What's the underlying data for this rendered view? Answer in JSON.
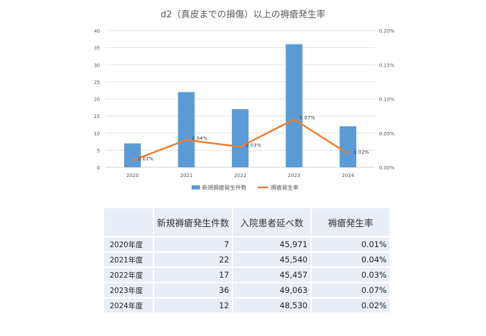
{
  "chart_data": {
    "type": "bar+line",
    "title": "d2（真皮までの損傷）以上の褥瘡発生率",
    "categories": [
      "2020",
      "2021",
      "2022",
      "2023",
      "2024"
    ],
    "series": [
      {
        "name": "新規褥瘡発生件数",
        "type": "bar",
        "axis": "left",
        "values": [
          7,
          22,
          17,
          36,
          12
        ],
        "color": "#5b9bd5"
      },
      {
        "name": "褥瘡発生率",
        "type": "line",
        "axis": "right",
        "values": [
          0.01,
          0.04,
          0.03,
          0.07,
          0.02
        ],
        "labels": [
          "0.01%",
          "0.04%",
          "0.03%",
          "0.07%",
          "0.02%"
        ],
        "color": "#ed7d31"
      }
    ],
    "y_left": {
      "range": [
        0,
        40
      ],
      "ticks": [
        "0",
        "5",
        "10",
        "15",
        "20",
        "25",
        "30",
        "35",
        "40"
      ]
    },
    "y_right": {
      "range": [
        0,
        0.2
      ],
      "ticks": [
        "0.00%",
        "0.05%",
        "0.10%",
        "0.15%",
        "0.20%"
      ]
    },
    "grid": true,
    "legend": "bottom"
  },
  "table": {
    "headers": [
      "",
      "新規褥瘡発生件数",
      "入院患者延べ数",
      "褥瘡発生率"
    ],
    "rows": [
      [
        "2020年度",
        "7",
        "45,971",
        "0.01%"
      ],
      [
        "2021年度",
        "22",
        "45,540",
        "0.04%"
      ],
      [
        "2022年度",
        "17",
        "45,457",
        "0.03%"
      ],
      [
        "2023年度",
        "36",
        "49,063",
        "0.07%"
      ],
      [
        "2024年度",
        "12",
        "48,530",
        "0.02%"
      ]
    ]
  }
}
